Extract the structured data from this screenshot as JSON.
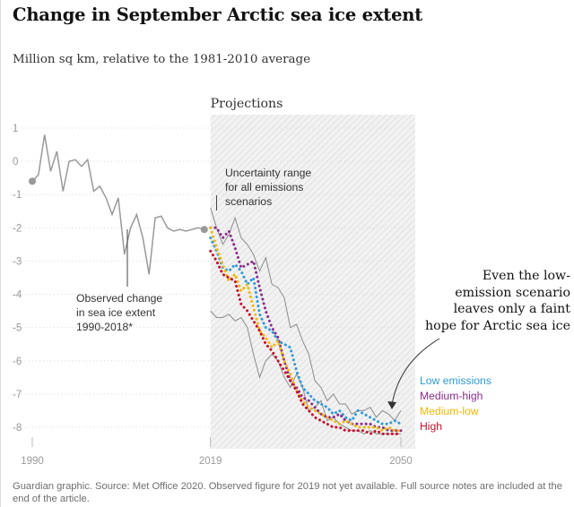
{
  "title": "Change in September Arctic sea ice extent",
  "subtitle": "Million sq km, relative to the 1981-2010 average",
  "projections_label": "Projections",
  "callout_lines": [
    "Even the low-",
    "emission scenario",
    "leaves only a faint",
    "hope for Arctic sea ice"
  ],
  "uncertainty_lines": [
    "Uncertainty range",
    "for all emissions",
    "scenarios"
  ],
  "observed_lines": [
    "Observed change",
    "in sea ice extent",
    "1990-2018*"
  ],
  "source": "Guardian graphic. Source: Met Office 2020. Observed figure for 2019 not yet available. Full source notes are included at the end of the article.",
  "colors": {
    "observed": "#999999",
    "uncertainty": "#8c8c8c",
    "projection_bg": "#f0f0f0",
    "low": "#2e9bd6",
    "medium_high": "#8b2b8b",
    "medium_low": "#f2b705",
    "high": "#c8102e"
  },
  "chart_data": {
    "type": "line",
    "title": "Change in September Arctic sea ice extent",
    "subtitle": "Million sq km, relative to the 1981-2010 average",
    "x_ticks": [
      1990,
      2019,
      2050
    ],
    "y_ticks": [
      1,
      0,
      -1,
      -2,
      -3,
      -4,
      -5,
      -6,
      -7,
      -8
    ],
    "xlim": [
      1990,
      2050
    ],
    "ylim": [
      -8.3,
      1.2
    ],
    "projection_start": 2019,
    "observed": {
      "x": [
        1990,
        1991,
        1992,
        1993,
        1994,
        1995,
        1996,
        1997,
        1998,
        1999,
        2000,
        2001,
        2002,
        2003,
        2004,
        2005,
        2006,
        2007,
        2008,
        2009,
        2010,
        2011,
        2012,
        2013,
        2014,
        2015,
        2016,
        2017,
        2018
      ],
      "y": [
        -0.6,
        -0.4,
        0.8,
        -0.3,
        0.3,
        -0.9,
        0.0,
        0.05,
        -0.15,
        0.05,
        -0.9,
        -0.75,
        -1.1,
        -1.6,
        -1.1,
        -2.8,
        -2.0,
        -1.6,
        -2.3,
        -3.4,
        -1.7,
        -1.65,
        -2.0,
        -2.1,
        -2.05,
        -2.1,
        -2.05,
        -2.0,
        -2.05
      ]
    },
    "uncertainty_range": {
      "x": [
        2019,
        2020,
        2021,
        2022,
        2023,
        2024,
        2025,
        2026,
        2027,
        2028,
        2029,
        2030,
        2031,
        2032,
        2033,
        2034,
        2035,
        2036,
        2037,
        2038,
        2039,
        2040,
        2041,
        2042,
        2043,
        2044,
        2045,
        2046,
        2047,
        2048,
        2049,
        2050
      ],
      "upper": [
        -1.4,
        -2.0,
        -2.5,
        -2.2,
        -1.7,
        -2.3,
        -2.5,
        -2.8,
        -3.3,
        -2.9,
        -3.7,
        -3.8,
        -4.1,
        -5.0,
        -4.9,
        -5.4,
        -5.8,
        -6.6,
        -6.8,
        -7.2,
        -7.0,
        -7.3,
        -7.3,
        -7.6,
        -7.5,
        -7.5,
        -7.4,
        -7.7,
        -7.5,
        -7.6,
        -7.8,
        -7.5
      ],
      "lower": [
        -4.5,
        -4.7,
        -4.7,
        -4.6,
        -4.8,
        -4.7,
        -5.0,
        -5.8,
        -6.5,
        -6.0,
        -5.8,
        -6.0,
        -6.5,
        -6.8,
        -6.4,
        -6.8,
        -7.5,
        -7.4,
        -7.2,
        -7.8,
        -7.7,
        -7.9,
        -8.0,
        -8.1,
        -8.1,
        -8.2,
        -8.1,
        -8.2,
        -8.2,
        -8.2,
        -8.2,
        -8.2
      ]
    },
    "series": [
      {
        "name": "Low emissions",
        "x": [
          2019,
          2020,
          2021,
          2022,
          2023,
          2024,
          2025,
          2026,
          2027,
          2028,
          2029,
          2030,
          2031,
          2032,
          2033,
          2034,
          2035,
          2036,
          2037,
          2038,
          2039,
          2040,
          2041,
          2042,
          2043,
          2044,
          2045,
          2046,
          2047,
          2048,
          2049,
          2050
        ],
        "y": [
          -2.3,
          -2.7,
          -3.2,
          -3.3,
          -3.1,
          -3.3,
          -3.7,
          -3.5,
          -4.6,
          -5.0,
          -5.1,
          -5.4,
          -5.5,
          -5.6,
          -6.3,
          -6.8,
          -7.0,
          -7.2,
          -7.3,
          -7.4,
          -7.6,
          -7.5,
          -7.7,
          -7.8,
          -7.5,
          -7.6,
          -7.7,
          -7.8,
          -7.9,
          -7.9,
          -7.8,
          -7.9
        ]
      },
      {
        "name": "Medium-high",
        "x": [
          2019,
          2020,
          2021,
          2022,
          2023,
          2024,
          2025,
          2026,
          2027,
          2028,
          2029,
          2030,
          2031,
          2032,
          2033,
          2034,
          2035,
          2036,
          2037,
          2038,
          2039,
          2040,
          2041,
          2042,
          2043,
          2044,
          2045,
          2046,
          2047,
          2048,
          2049,
          2050
        ],
        "y": [
          -2.0,
          -2.0,
          -2.3,
          -2.1,
          -2.6,
          -3.2,
          -3.1,
          -3.0,
          -3.8,
          -4.5,
          -5.0,
          -5.3,
          -6.0,
          -6.6,
          -6.8,
          -7.1,
          -7.2,
          -7.4,
          -7.6,
          -7.7,
          -7.7,
          -7.6,
          -7.8,
          -7.9,
          -7.9,
          -7.9,
          -7.9,
          -8.0,
          -8.0,
          -8.1,
          -8.1,
          -8.1
        ]
      },
      {
        "name": "Medium-low",
        "x": [
          2019,
          2020,
          2021,
          2022,
          2023,
          2024,
          2025,
          2026,
          2027,
          2028,
          2029,
          2030,
          2031,
          2032,
          2033,
          2034,
          2035,
          2036,
          2037,
          2038,
          2039,
          2040,
          2041,
          2042,
          2043,
          2044,
          2045,
          2046,
          2047,
          2048,
          2049,
          2050
        ],
        "y": [
          -2.0,
          -2.6,
          -3.1,
          -3.6,
          -3.4,
          -3.9,
          -3.7,
          -4.4,
          -5.1,
          -5.3,
          -5.6,
          -5.4,
          -6.0,
          -6.4,
          -6.9,
          -7.2,
          -7.4,
          -7.5,
          -7.6,
          -7.7,
          -7.8,
          -7.9,
          -7.8,
          -7.9,
          -8.0,
          -8.0,
          -8.0,
          -8.0,
          -8.1,
          -8.0,
          -8.1,
          -8.1
        ]
      },
      {
        "name": "High",
        "x": [
          2019,
          2020,
          2021,
          2022,
          2023,
          2024,
          2025,
          2026,
          2027,
          2028,
          2029,
          2030,
          2031,
          2032,
          2033,
          2034,
          2035,
          2036,
          2037,
          2038,
          2039,
          2040,
          2041,
          2042,
          2043,
          2044,
          2045,
          2046,
          2047,
          2048,
          2049,
          2050
        ],
        "y": [
          -2.7,
          -3.0,
          -3.4,
          -3.5,
          -3.6,
          -4.3,
          -4.5,
          -4.8,
          -5.1,
          -5.5,
          -5.7,
          -6.0,
          -6.3,
          -6.6,
          -6.9,
          -7.3,
          -7.5,
          -7.7,
          -7.8,
          -7.9,
          -8.0,
          -8.0,
          -8.1,
          -8.1,
          -8.1,
          -8.1,
          -8.2,
          -8.1,
          -8.2,
          -8.2,
          -8.2,
          -8.2
        ]
      }
    ],
    "legend": [
      "Low emissions",
      "Medium-high",
      "Medium-low",
      "High"
    ],
    "legend_position": "right"
  }
}
